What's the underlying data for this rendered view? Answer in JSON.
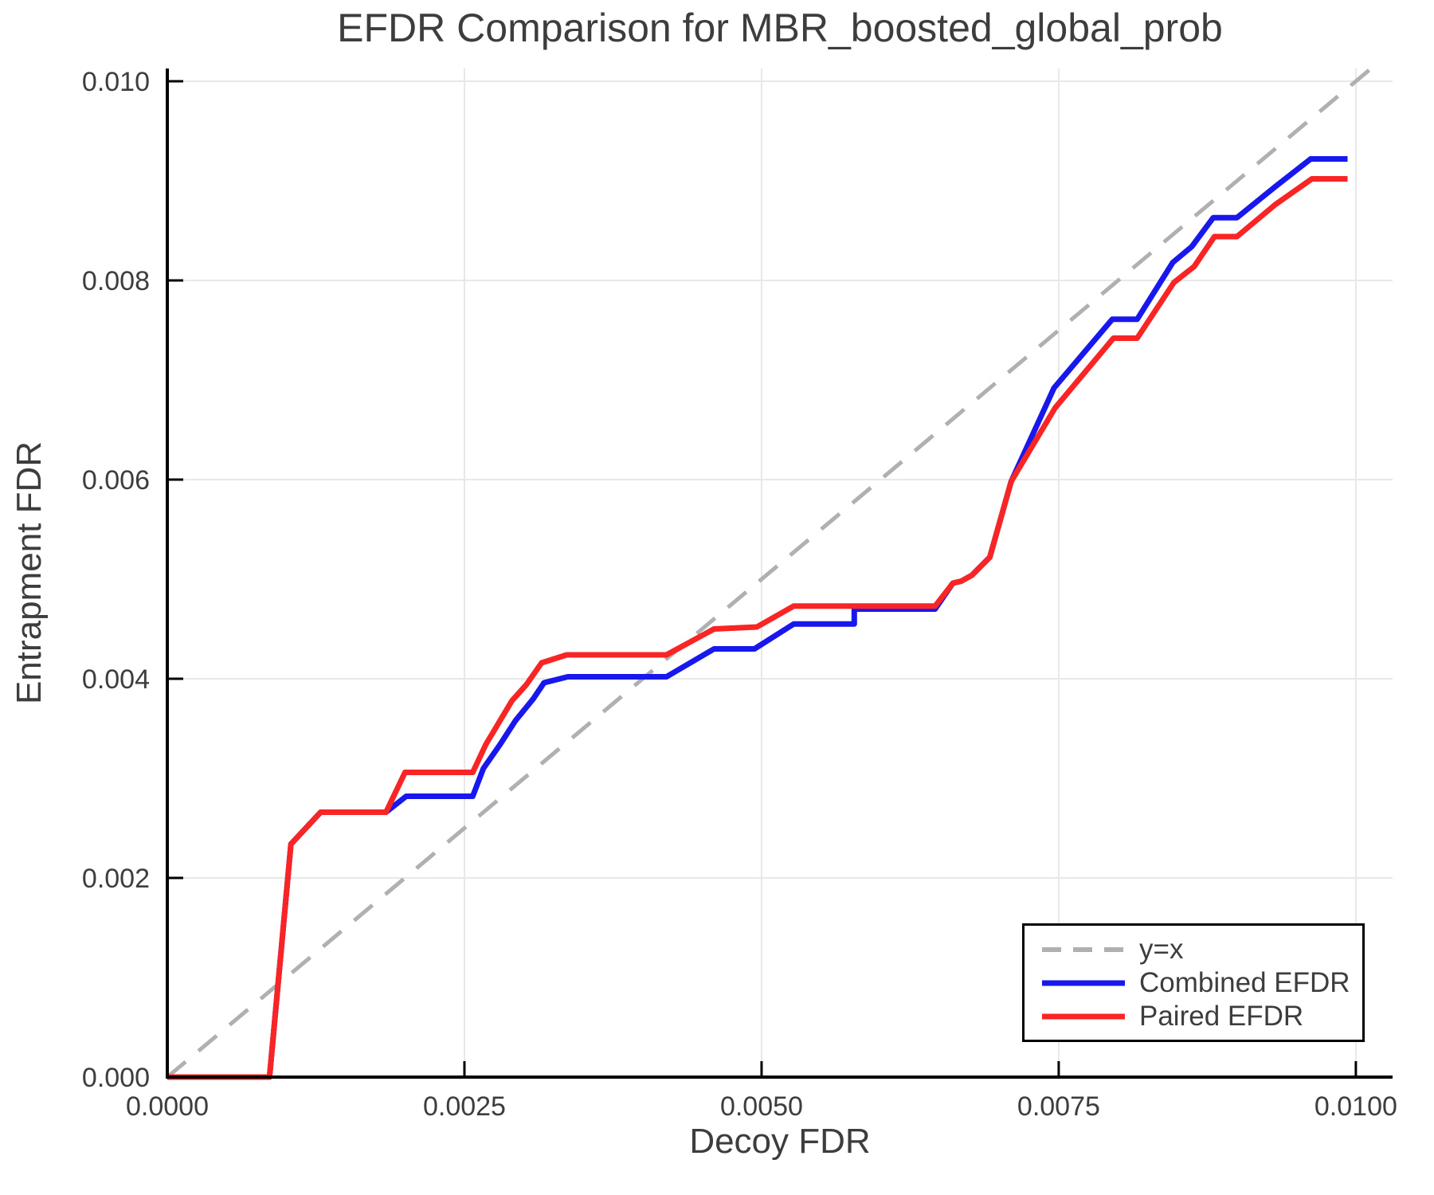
{
  "chart_data": {
    "type": "line",
    "title": "EFDR Comparison for MBR_boosted_global_prob",
    "xlabel": "Decoy FDR",
    "ylabel": "Entrapment FDR",
    "xlim": [
      0,
      0.010309
    ],
    "ylim": [
      0,
      0.010128
    ],
    "grid": true,
    "x_ticks": [
      0,
      0.0025,
      0.005,
      0.0075,
      0.01
    ],
    "x_tick_labels": [
      "0.0000",
      "0.0025",
      "0.0050",
      "0.0075",
      "0.0100"
    ],
    "y_ticks": [
      0,
      0.002,
      0.004,
      0.006,
      0.008,
      0.01
    ],
    "y_tick_labels": [
      "0.000",
      "0.002",
      "0.004",
      "0.006",
      "0.008",
      "0.010"
    ],
    "legend": {
      "position": "lower right",
      "entries": [
        {
          "label": "y=x"
        },
        {
          "label": "Combined EFDR"
        },
        {
          "label": "Paired EFDR"
        }
      ]
    },
    "series": [
      {
        "name": "y=x",
        "color": "#b0b0b0",
        "dashed": true,
        "width": 5,
        "points": [
          [
            0,
            0
          ],
          [
            0.010128,
            0.010128
          ]
        ]
      },
      {
        "name": "Combined EFDR",
        "color": "#1717ee",
        "dashed": false,
        "width": 7,
        "points": [
          [
            0,
            0
          ],
          [
            0.00086,
            0
          ],
          [
            0.00104,
            0.00234
          ],
          [
            0.00129,
            0.00266
          ],
          [
            0.00184,
            0.00266
          ],
          [
            0.00201,
            0.00282
          ],
          [
            0.00257,
            0.00282
          ],
          [
            0.00266,
            0.0031
          ],
          [
            0.0028,
            0.00334
          ],
          [
            0.00293,
            0.00358
          ],
          [
            0.00308,
            0.0038
          ],
          [
            0.00317,
            0.00396
          ],
          [
            0.00337,
            0.00402
          ],
          [
            0.0042,
            0.00402
          ],
          [
            0.0046,
            0.0043
          ],
          [
            0.00494,
            0.0043
          ],
          [
            0.00527,
            0.00455
          ],
          [
            0.00578,
            0.00455
          ],
          [
            0.00578,
            0.0047
          ],
          [
            0.00646,
            0.0047
          ],
          [
            0.00661,
            0.00496
          ],
          [
            0.00668,
            0.00498
          ],
          [
            0.00677,
            0.00504
          ],
          [
            0.00692,
            0.00522
          ],
          [
            0.0071,
            0.00598
          ],
          [
            0.00746,
            0.00692
          ],
          [
            0.00795,
            0.00761
          ],
          [
            0.00816,
            0.00761
          ],
          [
            0.00846,
            0.00818
          ],
          [
            0.00862,
            0.00834
          ],
          [
            0.0088,
            0.00863
          ],
          [
            0.009,
            0.00863
          ],
          [
            0.00932,
            0.00894
          ],
          [
            0.00962,
            0.00922
          ],
          [
            0.00993,
            0.00922
          ]
        ]
      },
      {
        "name": "Paired EFDR",
        "color": "#f92525",
        "dashed": false,
        "width": 7,
        "points": [
          [
            0,
            0
          ],
          [
            0.00086,
            0
          ],
          [
            0.00104,
            0.00234
          ],
          [
            0.00129,
            0.00266
          ],
          [
            0.00184,
            0.00266
          ],
          [
            0.002,
            0.00306
          ],
          [
            0.00257,
            0.00306
          ],
          [
            0.00268,
            0.00334
          ],
          [
            0.0028,
            0.00358
          ],
          [
            0.0029,
            0.00378
          ],
          [
            0.00302,
            0.00394
          ],
          [
            0.00315,
            0.00416
          ],
          [
            0.00336,
            0.00424
          ],
          [
            0.0042,
            0.00424
          ],
          [
            0.0046,
            0.0045
          ],
          [
            0.00496,
            0.00452
          ],
          [
            0.00527,
            0.00473
          ],
          [
            0.00646,
            0.00473
          ],
          [
            0.00661,
            0.00496
          ],
          [
            0.00668,
            0.00498
          ],
          [
            0.00677,
            0.00504
          ],
          [
            0.00692,
            0.00522
          ],
          [
            0.0071,
            0.00598
          ],
          [
            0.00747,
            0.00672
          ],
          [
            0.00796,
            0.00742
          ],
          [
            0.00816,
            0.00742
          ],
          [
            0.00847,
            0.00798
          ],
          [
            0.00864,
            0.00814
          ],
          [
            0.00881,
            0.00844
          ],
          [
            0.009,
            0.00844
          ],
          [
            0.00932,
            0.00876
          ],
          [
            0.00963,
            0.00902
          ],
          [
            0.00993,
            0.00902
          ]
        ]
      }
    ]
  }
}
